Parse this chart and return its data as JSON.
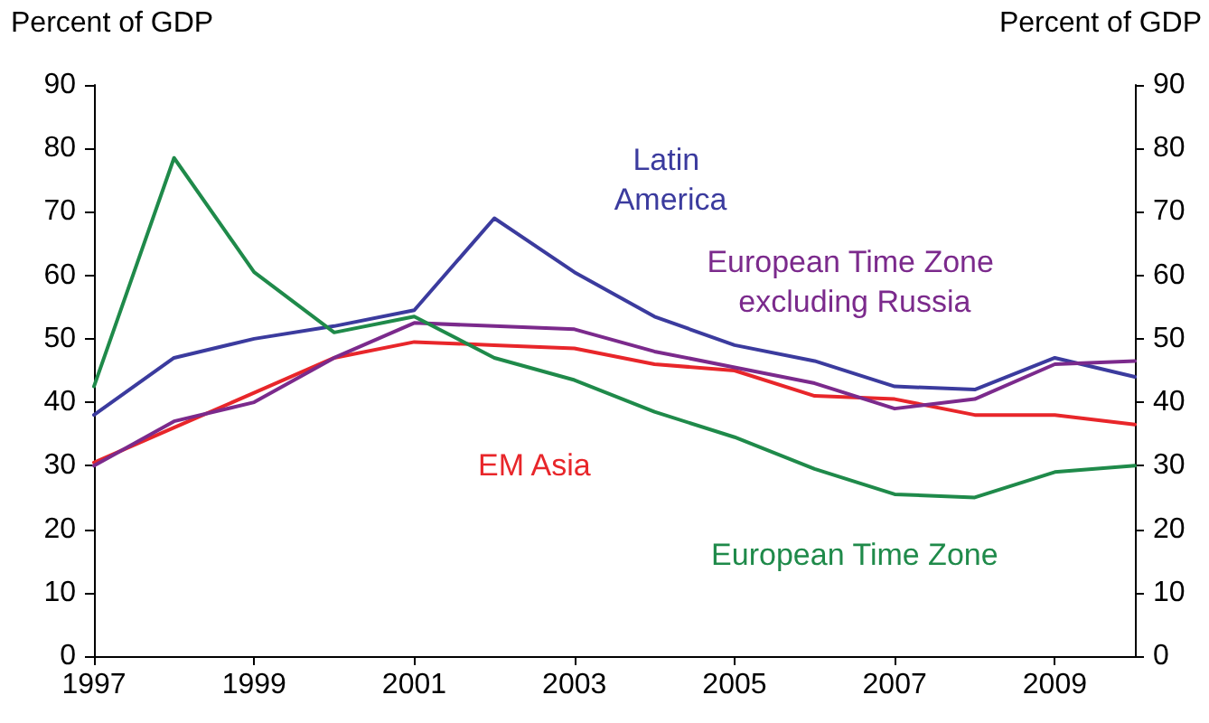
{
  "chart_data": {
    "type": "line",
    "ylabel": "Percent of GDP",
    "y2label": "Percent of GDP",
    "x": [
      1997,
      1998,
      1999,
      2000,
      2001,
      2002,
      2003,
      2004,
      2005,
      2006,
      2007,
      2008,
      2009,
      2010
    ],
    "xlim": [
      1997,
      2010
    ],
    "xticks": [
      1997,
      1999,
      2001,
      2003,
      2005,
      2007,
      2009
    ],
    "ylim": [
      0,
      90
    ],
    "yticks": [
      0,
      10,
      20,
      30,
      40,
      50,
      60,
      70,
      80,
      90
    ],
    "y2lim": [
      0,
      90
    ],
    "y2ticks": [
      0,
      10,
      20,
      30,
      40,
      50,
      60,
      70,
      80,
      90
    ],
    "grid": false,
    "legend": false,
    "marker": "none",
    "line_style": "solid",
    "series": [
      {
        "name": "Latin America",
        "color": "#3b3b9e",
        "values": [
          38,
          47,
          50,
          52,
          54.5,
          69,
          60.5,
          53.5,
          49,
          46.5,
          42.5,
          42,
          47,
          44
        ]
      },
      {
        "name": "EM Asia",
        "color": "#e8262a",
        "values": [
          30.5,
          36,
          41.5,
          47,
          49.5,
          49,
          48.5,
          46,
          45,
          41,
          40.5,
          38,
          38,
          36.5
        ]
      },
      {
        "name": "European Time Zone excluding Russia",
        "color": "#7b2a8c",
        "values": [
          30,
          37,
          40,
          47,
          52.5,
          52,
          51.5,
          48,
          45.5,
          43,
          39,
          40.5,
          46,
          46.5
        ]
      },
      {
        "name": "European Time Zone",
        "color": "#1f8a4a",
        "values": [
          42.5,
          78.5,
          60.5,
          51,
          53.5,
          47,
          43.5,
          38.5,
          34.5,
          29.5,
          25.5,
          25,
          29,
          30
        ]
      }
    ]
  }
}
